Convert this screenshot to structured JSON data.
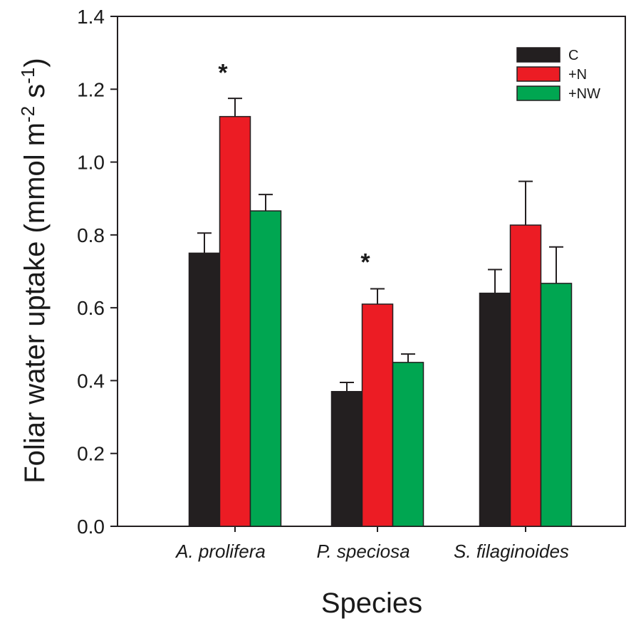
{
  "chart_data": {
    "type": "bar",
    "title": "",
    "xlabel": "Species",
    "ylabel": "Foliar water uptake (mmol m",
    "ylabel_sup1": "-2",
    "ylabel_mid": " s",
    "ylabel_sup2": "-1",
    "ylabel_end": ")",
    "ylim": [
      0,
      1.4
    ],
    "yticks": [
      "0.0",
      "0.2",
      "0.4",
      "0.6",
      "0.8",
      "1.0",
      "1.2",
      "1.4"
    ],
    "categories": [
      "A. prolifera",
      "P. speciosa",
      "S. filaginoides"
    ],
    "series": [
      {
        "name": "C",
        "color": "#231f20",
        "values": [
          0.75,
          0.37,
          0.64
        ],
        "errors": [
          0.055,
          0.025,
          0.065
        ]
      },
      {
        "name": "+N",
        "color": "#ec1c24",
        "values": [
          1.125,
          0.61,
          0.827
        ],
        "errors": [
          0.05,
          0.042,
          0.12
        ]
      },
      {
        "name": "+NW",
        "color": "#00a651",
        "values": [
          0.866,
          0.45,
          0.667
        ],
        "errors": [
          0.045,
          0.023,
          0.1
        ]
      }
    ],
    "annotations": [
      {
        "text": "*",
        "category": 0,
        "value": 1.27
      },
      {
        "text": "*",
        "category": 1,
        "value": 0.75
      }
    ],
    "legend_position": "top-right",
    "grid": false
  }
}
